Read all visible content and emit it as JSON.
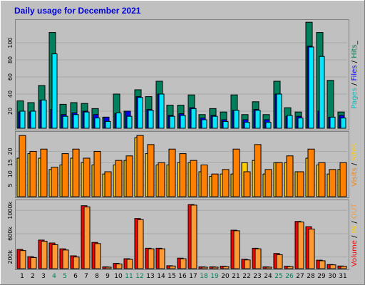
{
  "chart_data": {
    "type": "bar",
    "title": "Daily usage for December 2021",
    "categories": [
      "1",
      "2",
      "3",
      "4",
      "5",
      "6",
      "7",
      "8",
      "9",
      "10",
      "11",
      "12",
      "13",
      "14",
      "15",
      "16",
      "17",
      "18",
      "19",
      "20",
      "21",
      "22",
      "23",
      "24",
      "25",
      "26",
      "27",
      "28",
      "29",
      "30",
      "31"
    ],
    "weekend_days": [
      "4",
      "5",
      "11",
      "12",
      "18",
      "19",
      "25",
      "26"
    ],
    "colors": {
      "background": "#c0c0c0",
      "hits": "#00805c",
      "files": "#0000ff",
      "pages": "#00e8ff",
      "visits": "#ff8000",
      "sites": "#ffcc00",
      "kbytes_in": "#ff0000",
      "kbytes_out": "#ff9933",
      "weekend_label": "#00805c",
      "weekday_label": "#000000",
      "title": "#0000d8"
    },
    "panels": [
      {
        "id": "hits-files-pages",
        "ylabel_parts": [
          {
            "text": "Pages",
            "color": "#00c0c0"
          },
          {
            "text": " / ",
            "color": "#000000"
          },
          {
            "text": "Files",
            "color": "#0000ff"
          },
          {
            "text": " / ",
            "color": "#000000"
          },
          {
            "text": "Hits",
            "color": "#00805c"
          },
          {
            "text": "_",
            "color": "#000000"
          }
        ],
        "yticks": [
          "20",
          "40",
          "60",
          "80",
          "100"
        ],
        "ylim": [
          0,
          125
        ],
        "series": [
          {
            "name": "Hits",
            "key": "hits",
            "values": [
              32,
              30,
              50,
              112,
              28,
              30,
              29,
              23,
              13,
              40,
              20,
              45,
              37,
              55,
              27,
              27,
              39,
              16,
              23,
              19,
              39,
              16,
              31,
              16,
              55,
              24,
              19,
              124,
              112,
              56,
              19
            ]
          },
          {
            "name": "Files",
            "key": "files",
            "values": [
              19,
              19,
              33,
              22,
              16,
              18,
              20,
              16,
              13,
              17,
              20,
              37,
              22,
              40,
              15,
              17,
              24,
              12,
              15,
              10,
              21,
              10,
              22,
              10,
              40,
              14,
              14,
              96,
              20,
              13,
              15
            ]
          },
          {
            "name": "Pages",
            "key": "pages",
            "values": [
              20,
              20,
              33,
              87,
              14,
              16,
              19,
              12,
              8,
              18,
              14,
              36,
              21,
              40,
              14,
              15,
              23,
              10,
              14,
              8,
              21,
              7,
              21,
              7,
              40,
              15,
              12,
              95,
              84,
              13,
              12
            ]
          }
        ]
      },
      {
        "id": "visits-sites",
        "ylabel_parts": [
          {
            "text": "Visits",
            "color": "#ff8000"
          },
          {
            "text": " / ",
            "color": "#000000"
          },
          {
            "text": "Sites",
            "color": "#ffcc00"
          }
        ],
        "yticks": [
          "5",
          "10",
          "15",
          "20"
        ],
        "ylim": [
          0,
          28
        ],
        "series": [
          {
            "name": "Sites",
            "key": "sites",
            "values": [
              17,
              19,
              17,
              12,
              14,
              17,
              15,
              14,
              10,
              14,
              16,
              26,
              19,
              14,
              14,
              15,
              15,
              11,
              9,
              10,
              10,
              15,
              16,
              10,
              15,
              15,
              11,
              17,
              14,
              10,
              12
            ]
          },
          {
            "name": "Visits",
            "key": "visits",
            "values": [
              27,
              20,
              21,
              13,
              19,
              21,
              17,
              20,
              11,
              16,
              18,
              27,
              23,
              15,
              21,
              19,
              16,
              14,
              10,
              12,
              21,
              11,
              23,
              12,
              15,
              18,
              11,
              21,
              15,
              12,
              15
            ]
          }
        ]
      },
      {
        "id": "volume-in-out",
        "ylabel_parts": [
          {
            "text": "Volume",
            "color": "#ff0000"
          },
          {
            "text": " / ",
            "color": "#000000"
          },
          {
            "text": "IN",
            "color": "#ffcc00"
          },
          {
            "text": " / ",
            "color": "#000000"
          },
          {
            "text": "OUT",
            "color": "#ff9933"
          }
        ],
        "yticks": [
          "200k",
          "600k",
          "1000k"
        ],
        "ylim": [
          0,
          1150
        ],
        "series": [
          {
            "name": "IN",
            "key": "kbytes_in",
            "values": [
              330,
              205,
              490,
              440,
              340,
              220,
              1080,
              450,
              30,
              90,
              170,
              860,
              350,
              350,
              50,
              180,
              1100,
              30,
              30,
              40,
              660,
              160,
              350,
              30,
              260,
              40,
              810,
              720,
              145,
              70,
              45
            ]
          },
          {
            "name": "OUT",
            "key": "kbytes_out",
            "values": [
              310,
              190,
              470,
              410,
              320,
              200,
              1060,
              430,
              25,
              80,
              160,
              840,
              340,
              340,
              45,
              170,
              1090,
              25,
              25,
              35,
              650,
              150,
              340,
              25,
              240,
              35,
              800,
              680,
              135,
              65,
              40
            ]
          }
        ]
      }
    ]
  }
}
